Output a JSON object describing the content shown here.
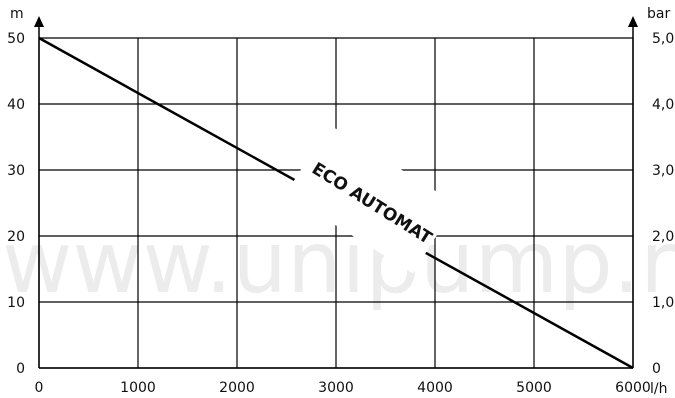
{
  "chart_data": {
    "type": "line",
    "x_axis": {
      "label": "l/h",
      "ticks": [
        0,
        1000,
        2000,
        3000,
        4000,
        5000,
        6000
      ],
      "tick_labels": [
        "0",
        "1000",
        "2000",
        "3000",
        "4000",
        "5000",
        "6000"
      ],
      "range": [
        0,
        6000
      ]
    },
    "y_axis_left": {
      "label": "m",
      "ticks": [
        0,
        10,
        20,
        30,
        40,
        50
      ],
      "tick_labels": [
        "0",
        "10",
        "20",
        "30",
        "40",
        "50"
      ],
      "range": [
        0,
        50
      ]
    },
    "y_axis_right": {
      "label": "bar",
      "ticks": [
        0,
        1,
        2,
        3,
        4,
        5
      ],
      "tick_labels": [
        "0",
        "1,0",
        "2,0",
        "3,0",
        "4,0",
        "5,0"
      ],
      "range": [
        0,
        5
      ]
    },
    "grid": true,
    "series": [
      {
        "name": "ECO AUTOMAT",
        "x": [
          0,
          6000
        ],
        "y": [
          50,
          0
        ],
        "color": "#000000"
      }
    ],
    "annotations": [
      {
        "text": "ECO AUTOMAT"
      }
    ],
    "watermark": "www.unipump.ru"
  }
}
